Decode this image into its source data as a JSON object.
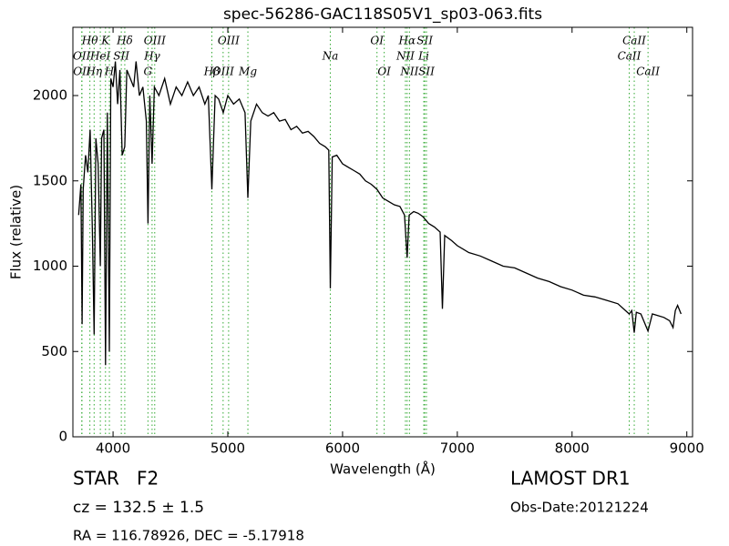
{
  "chart_data": {
    "type": "line",
    "title": "spec-56286-GAC118S05V1_sp03-063.fits",
    "xlabel": "Wavelength (Å)",
    "ylabel": "Flux (relative)",
    "xlim": [
      3650,
      9050
    ],
    "ylim": [
      0,
      2400
    ],
    "xticks": [
      4000,
      5000,
      6000,
      7000,
      8000,
      9000
    ],
    "yticks": [
      0,
      500,
      1000,
      1500,
      2000
    ],
    "color": "#000000",
    "line_color": "#33aa33",
    "x": [
      3700,
      3720,
      3730,
      3740,
      3760,
      3780,
      3800,
      3820,
      3835,
      3850,
      3870,
      3889,
      3900,
      3920,
      3934,
      3950,
      3968,
      3980,
      4000,
      4020,
      4040,
      4060,
      4080,
      4102,
      4120,
      4150,
      4180,
      4200,
      4230,
      4260,
      4290,
      4304,
      4320,
      4340,
      4360,
      4400,
      4450,
      4500,
      4550,
      4600,
      4650,
      4700,
      4750,
      4800,
      4830,
      4861,
      4890,
      4920,
      4960,
      5000,
      5050,
      5100,
      5150,
      5175,
      5200,
      5250,
      5300,
      5350,
      5400,
      5450,
      5500,
      5550,
      5600,
      5650,
      5700,
      5750,
      5800,
      5850,
      5880,
      5893,
      5910,
      5950,
      6000,
      6050,
      6100,
      6150,
      6200,
      6250,
      6300,
      6350,
      6400,
      6450,
      6500,
      6540,
      6563,
      6580,
      6620,
      6660,
      6700,
      6750,
      6800,
      6850,
      6870,
      6890,
      6950,
      7000,
      7100,
      7200,
      7300,
      7400,
      7500,
      7600,
      7700,
      7800,
      7900,
      8000,
      8100,
      8200,
      8300,
      8400,
      8498,
      8520,
      8542,
      8560,
      8600,
      8662,
      8700,
      8750,
      8800,
      8850,
      8880,
      8900,
      8920,
      8950
    ],
    "values": [
      1300,
      1480,
      660,
      1450,
      1650,
      1550,
      1800,
      1200,
      600,
      1750,
      1600,
      1000,
      1750,
      1800,
      420,
      1900,
      500,
      2100,
      2050,
      2200,
      1950,
      2150,
      1650,
      1700,
      2150,
      2100,
      2050,
      2200,
      2000,
      2050,
      1850,
      1250,
      2000,
      1600,
      2050,
      2000,
      2100,
      1950,
      2050,
      2000,
      2080,
      2000,
      2050,
      1950,
      2000,
      1450,
      2000,
      1980,
      1900,
      2000,
      1950,
      1980,
      1900,
      1400,
      1850,
      1950,
      1900,
      1880,
      1900,
      1850,
      1860,
      1800,
      1820,
      1780,
      1790,
      1760,
      1720,
      1700,
      1680,
      870,
      1640,
      1650,
      1600,
      1580,
      1560,
      1540,
      1500,
      1480,
      1450,
      1400,
      1380,
      1360,
      1350,
      1300,
      1050,
      1300,
      1320,
      1310,
      1290,
      1250,
      1230,
      1200,
      750,
      1180,
      1150,
      1120,
      1080,
      1060,
      1030,
      1000,
      990,
      960,
      930,
      910,
      880,
      860,
      830,
      820,
      800,
      780,
      720,
      740,
      610,
      730,
      720,
      620,
      720,
      710,
      700,
      680,
      640,
      740,
      770,
      720
    ],
    "lines": [
      {
        "label": "Hθ",
        "x": 3798
      },
      {
        "label": "K",
        "x": 3934
      },
      {
        "label": "Hδ",
        "x": 4102
      },
      {
        "label": "OIII",
        "x": 4363
      },
      {
        "label": "OIII",
        "x": 5007
      },
      {
        "label": "OI",
        "x": 6300
      },
      {
        "label": "Hα",
        "x": 6563
      },
      {
        "label": "SII",
        "x": 6716
      },
      {
        "label": "CaII",
        "x": 8542
      },
      {
        "label": "OII",
        "x": 3727
      },
      {
        "label": "HeI",
        "x": 3889
      },
      {
        "label": "SII",
        "x": 4072
      },
      {
        "label": "Hγ",
        "x": 4340
      },
      {
        "label": "Na",
        "x": 5893
      },
      {
        "label": "NII",
        "x": 6548
      },
      {
        "label": "Li",
        "x": 6708
      },
      {
        "label": "CaII",
        "x": 8498
      },
      {
        "label": "OII",
        "x": 3729
      },
      {
        "label": "Hη",
        "x": 3835
      },
      {
        "label": "H",
        "x": 3968
      },
      {
        "label": "G",
        "x": 4304
      },
      {
        "label": "Hβ",
        "x": 4861
      },
      {
        "label": "OIII",
        "x": 4959
      },
      {
        "label": "Mg",
        "x": 5175
      },
      {
        "label": "OI",
        "x": 6363
      },
      {
        "label": "NII",
        "x": 6583
      },
      {
        "label": "SII",
        "x": 6731
      },
      {
        "label": "CaII",
        "x": 8662
      }
    ]
  },
  "info": {
    "class": "STAR   F2",
    "survey": "LAMOST DR1",
    "cz": "cz = 132.5 ± 1.5",
    "date": "Obs-Date:20121224",
    "coords": "RA = 116.78926, DEC = -5.17918"
  }
}
